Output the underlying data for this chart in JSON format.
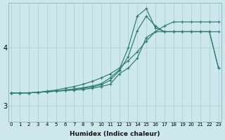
{
  "xlabel": "Humidex (Indice chaleur)",
  "bg_color": "#cce8ec",
  "grid_color": "#aacccc",
  "line_color": "#2e7d70",
  "x_ticks": [
    0,
    1,
    2,
    3,
    4,
    5,
    6,
    7,
    8,
    9,
    10,
    11,
    12,
    13,
    14,
    15,
    16,
    17,
    18,
    19,
    20,
    21,
    22,
    23
  ],
  "y_ticks": [
    3,
    4
  ],
  "ylim": [
    2.72,
    4.78
  ],
  "xlim": [
    -0.3,
    23.3
  ],
  "series": [
    [
      3.22,
      3.22,
      3.22,
      3.23,
      3.24,
      3.25,
      3.26,
      3.27,
      3.28,
      3.3,
      3.33,
      3.37,
      3.55,
      3.65,
      3.82,
      4.18,
      4.28,
      4.28,
      4.28,
      4.28,
      4.28,
      4.28,
      4.28,
      4.28
    ],
    [
      3.22,
      3.22,
      3.22,
      3.23,
      3.24,
      3.25,
      3.26,
      3.28,
      3.3,
      3.32,
      3.36,
      3.44,
      3.6,
      3.85,
      4.3,
      4.55,
      4.38,
      4.28,
      4.28,
      4.28,
      4.28,
      4.28,
      4.28,
      3.65
    ],
    [
      3.22,
      3.22,
      3.22,
      3.23,
      3.24,
      3.25,
      3.27,
      3.29,
      3.31,
      3.34,
      3.38,
      3.48,
      3.62,
      4.0,
      4.55,
      4.68,
      4.35,
      4.28,
      4.28,
      4.28,
      4.28,
      4.28,
      4.28,
      3.65
    ],
    [
      3.22,
      3.22,
      3.22,
      3.23,
      3.25,
      3.27,
      3.3,
      3.33,
      3.37,
      3.42,
      3.48,
      3.55,
      3.65,
      3.78,
      3.93,
      4.12,
      4.28,
      4.38,
      4.45,
      4.45,
      4.45,
      4.45,
      4.45,
      4.45
    ]
  ]
}
